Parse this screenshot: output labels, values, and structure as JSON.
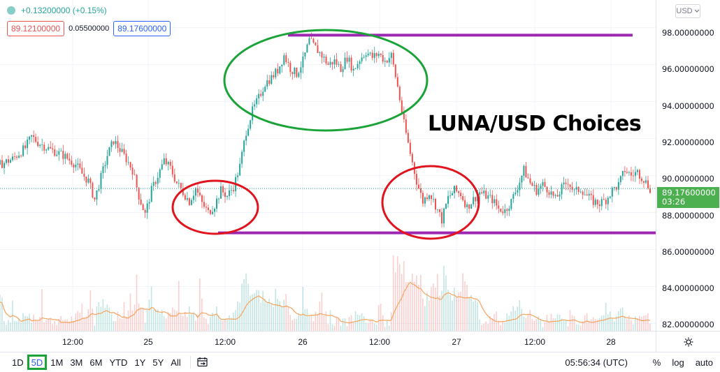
{
  "legend": {
    "change": "+0.13200000 (+0.15%)",
    "bid": "89.12100000",
    "spread": "0.05500000",
    "ask": "89.17600000"
  },
  "overlay_title": "LUNA/USD Choices",
  "price_axis": {
    "currency": "USD",
    "labels": [
      "98.00000000",
      "96.00000000",
      "94.00000000",
      "92.00000000",
      "90.00000000",
      "88.00000000",
      "86.00000000",
      "84.00000000",
      "82.00000000"
    ],
    "last_price": "89.17600000",
    "countdown": "03:26"
  },
  "time_axis": {
    "labels": [
      "12:00",
      "25",
      "12:00",
      "26",
      "12:00",
      "27",
      "12:00",
      "28"
    ]
  },
  "bottom_bar": {
    "ranges": [
      "1D",
      "5D",
      "1M",
      "3M",
      "6M",
      "YTD",
      "1Y",
      "5Y",
      "All"
    ],
    "active_range": "5D",
    "clock": "05:56:34 (UTC)",
    "percent": "%",
    "log": "log",
    "auto": "auto"
  },
  "colors": {
    "up": "#26a69a",
    "down": "#ef5350",
    "level_line": "#9c27b0",
    "ellipse_green": "#1aa337",
    "ellipse_red": "#e0141e",
    "volume_ma": "#f7a35c",
    "last_price": "#4caf50"
  },
  "icons": {
    "settings": "gear-icon",
    "replay": "calendar-range-icon",
    "currency_dropdown": "chevron-down-icon"
  },
  "chart_data": {
    "type": "candlestick",
    "ylim": [
      81.6,
      99.5
    ],
    "close_path": [
      [
        0,
        90.6
      ],
      [
        2,
        90.9
      ],
      [
        4,
        91.5
      ],
      [
        5,
        92.1
      ],
      [
        6,
        91.8
      ],
      [
        8,
        91.4
      ],
      [
        10,
        91.1
      ],
      [
        12,
        90.6
      ],
      [
        13,
        90.1
      ],
      [
        14,
        89.7
      ],
      [
        15,
        88.7
      ],
      [
        16,
        89.9
      ],
      [
        17,
        91.1
      ],
      [
        18,
        91.9
      ],
      [
        19,
        91.4
      ],
      [
        20,
        90.9
      ],
      [
        21,
        90.3
      ],
      [
        22,
        88.9
      ],
      [
        23,
        87.9
      ],
      [
        24,
        89.2
      ],
      [
        25,
        90.0
      ],
      [
        26,
        90.8
      ],
      [
        27,
        90.4
      ],
      [
        28,
        89.6
      ],
      [
        29,
        89.1
      ],
      [
        30,
        88.6
      ],
      [
        31,
        89.3
      ],
      [
        32,
        88.5
      ],
      [
        33,
        88.0
      ],
      [
        34,
        88.4
      ],
      [
        35,
        89.2
      ],
      [
        36,
        88.9
      ],
      [
        37,
        89.4
      ],
      [
        38,
        90.5
      ],
      [
        39,
        92.4
      ],
      [
        40,
        93.5
      ],
      [
        41,
        94.2
      ],
      [
        42,
        95.0
      ],
      [
        43,
        95.3
      ],
      [
        44,
        95.7
      ],
      [
        45,
        96.5
      ],
      [
        46,
        95.8
      ],
      [
        47,
        95.5
      ],
      [
        48,
        96.2
      ],
      [
        49,
        97.3
      ],
      [
        50,
        96.9
      ],
      [
        51,
        96.5
      ],
      [
        52,
        96.0
      ],
      [
        53,
        96.2
      ],
      [
        54,
        95.8
      ],
      [
        55,
        96.4
      ],
      [
        56,
        95.7
      ],
      [
        57,
        96.3
      ],
      [
        58,
        96.7
      ],
      [
        59,
        96.4
      ],
      [
        60,
        96.6
      ],
      [
        61,
        96.2
      ],
      [
        62,
        96.5
      ],
      [
        63,
        94.8
      ],
      [
        64,
        92.8
      ],
      [
        65,
        91.2
      ],
      [
        66,
        89.7
      ],
      [
        67,
        88.6
      ],
      [
        68,
        89.1
      ],
      [
        69,
        88.4
      ],
      [
        70,
        87.6
      ],
      [
        71,
        88.8
      ],
      [
        72,
        89.2
      ],
      [
        73,
        89.0
      ],
      [
        74,
        88.3
      ],
      [
        75,
        88.7
      ],
      [
        76,
        89.1
      ],
      [
        77,
        88.9
      ],
      [
        78,
        88.7
      ],
      [
        79,
        88.2
      ],
      [
        80,
        88.1
      ],
      [
        81,
        88.6
      ],
      [
        82,
        89.4
      ],
      [
        83,
        90.3
      ],
      [
        84,
        89.6
      ],
      [
        85,
        89.2
      ],
      [
        86,
        89.5
      ],
      [
        87,
        89.2
      ],
      [
        88,
        88.7
      ],
      [
        89,
        89.3
      ],
      [
        90,
        89.7
      ],
      [
        91,
        89.1
      ],
      [
        92,
        89.3
      ],
      [
        93,
        88.9
      ],
      [
        94,
        88.6
      ],
      [
        95,
        88.5
      ],
      [
        96,
        88.7
      ],
      [
        97,
        89.2
      ],
      [
        98,
        89.5
      ],
      [
        99,
        90.3
      ],
      [
        100,
        90.0
      ],
      [
        101,
        90.2
      ],
      [
        102,
        89.8
      ],
      [
        103,
        89.3
      ]
    ],
    "x_ticks": [
      "12:00",
      "25",
      "12:00",
      "26",
      "12:00",
      "27",
      "12:00",
      "28"
    ],
    "levels": [
      97.6,
      86.9
    ],
    "volume_ma_visible": true
  }
}
